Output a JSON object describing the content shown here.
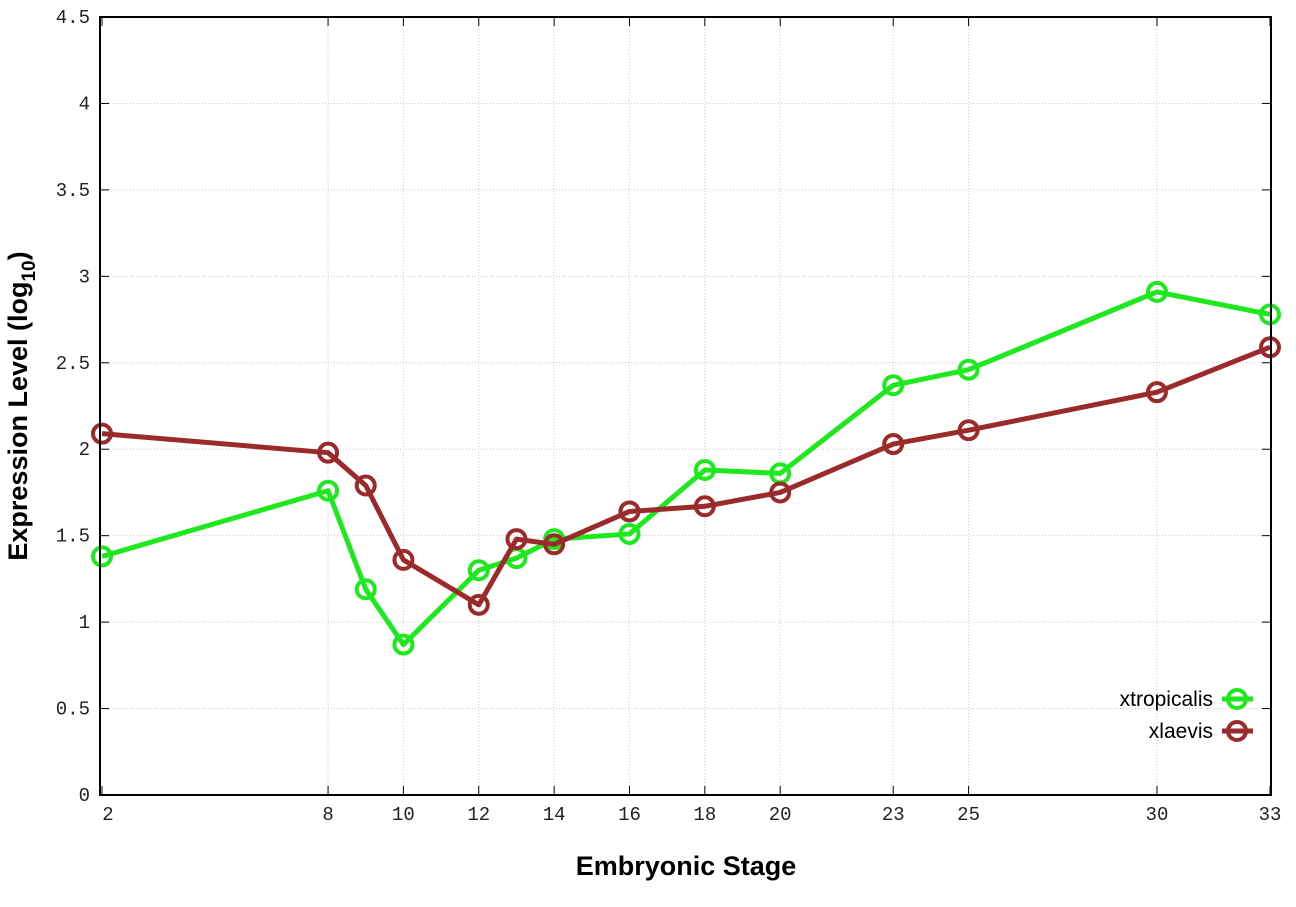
{
  "chart_data": {
    "type": "line",
    "title": "",
    "xlabel": "Embryonic Stage",
    "ylabel": "Expression Level (log",
    "ylabel_sub": "10",
    "ylabel_end": ")",
    "xlim": [
      2,
      33
    ],
    "ylim": [
      0,
      4.5
    ],
    "grid": true,
    "legend_position": "bottom-right",
    "x": [
      2,
      8,
      9,
      10,
      12,
      13,
      14,
      16,
      18,
      20,
      23,
      25,
      30,
      33
    ],
    "xticks": [
      2,
      8,
      10,
      12,
      14,
      16,
      18,
      20,
      23,
      25,
      30,
      33
    ],
    "xtick_labels": [
      "2",
      "8",
      "10",
      "12",
      "14",
      "16",
      "18",
      "20",
      "23",
      "25",
      "30",
      "33"
    ],
    "yticks": [
      0,
      0.5,
      1,
      1.5,
      2,
      2.5,
      3,
      3.5,
      4,
      4.5
    ],
    "ytick_labels": [
      "0",
      "0.5",
      "1",
      "1.5",
      "2",
      "2.5",
      "3",
      "3.5",
      "4",
      "4.5"
    ],
    "series": [
      {
        "name": "xtropicalis",
        "color": "#1ee81e",
        "values": [
          1.38,
          1.76,
          1.19,
          0.87,
          1.3,
          1.37,
          1.48,
          1.51,
          1.88,
          1.86,
          2.37,
          2.46,
          2.91,
          2.78
        ]
      },
      {
        "name": "xlaevis",
        "color": "#9b2a2a",
        "values": [
          2.09,
          1.98,
          1.79,
          1.36,
          1.1,
          1.48,
          1.45,
          1.64,
          1.67,
          1.75,
          2.03,
          2.11,
          2.33,
          2.59
        ]
      }
    ]
  }
}
